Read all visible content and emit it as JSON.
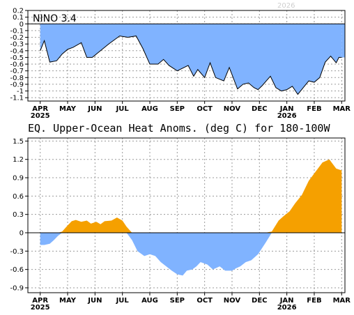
{
  "colors": {
    "positive": "#f5a000",
    "negative": "#80b3ff",
    "line": "#000000",
    "grid": "#9a9a9a"
  },
  "chart_data": [
    {
      "type": "area",
      "label": "NINO 3.4",
      "months": [
        "APR",
        "MAY",
        "JUN",
        "JUL",
        "AUG",
        "SEP",
        "OCT",
        "NOV",
        "DEC",
        "JAN",
        "FEB",
        "MAR"
      ],
      "year_labels": {
        "APR": "2025",
        "JAN": "2026"
      },
      "ylim": [
        -1.15,
        0.2
      ],
      "yticks": [
        0.2,
        0.1,
        0,
        -0.1,
        -0.2,
        -0.3,
        -0.4,
        -0.5,
        -0.6,
        -0.7,
        -0.8,
        -0.9,
        -1,
        -1.1
      ],
      "ytick_labels": [
        "0.2",
        "0.1",
        "0",
        "-0.1",
        "-0.2",
        "-0.3",
        "-0.4",
        "-0.5",
        "-0.6",
        "-0.7",
        "-0.8",
        "-0.9",
        "-1",
        "-1.1"
      ],
      "x": [
        0,
        0.15,
        0.35,
        0.6,
        0.8,
        1.0,
        1.2,
        1.5,
        1.7,
        1.9,
        2.2,
        2.5,
        2.8,
        2.9,
        3.2,
        3.5,
        3.75,
        4.0,
        4.3,
        4.5,
        4.7,
        5.0,
        5.25,
        5.4,
        5.6,
        5.75,
        6.0,
        6.2,
        6.4,
        6.7,
        6.9,
        7.2,
        7.4,
        7.6,
        7.8,
        7.95,
        8.1,
        8.4,
        8.6,
        8.8,
        9.0,
        9.2,
        9.4,
        9.6,
        9.8,
        10.0,
        10.2,
        10.4,
        10.6,
        10.8,
        10.9,
        11.0
      ],
      "y": [
        -0.4,
        -0.25,
        -0.57,
        -0.55,
        -0.45,
        -0.38,
        -0.35,
        -0.28,
        -0.5,
        -0.5,
        -0.4,
        -0.3,
        -0.21,
        -0.18,
        -0.2,
        -0.18,
        -0.37,
        -0.6,
        -0.6,
        -0.53,
        -0.62,
        -0.7,
        -0.65,
        -0.62,
        -0.78,
        -0.68,
        -0.8,
        -0.58,
        -0.8,
        -0.85,
        -0.65,
        -0.97,
        -0.9,
        -0.88,
        -0.95,
        -0.98,
        -0.92,
        -0.78,
        -0.95,
        -1.0,
        -0.98,
        -0.93,
        -1.05,
        -0.95,
        -0.85,
        -0.87,
        -0.8,
        -0.57,
        -0.48,
        -0.58,
        -0.5,
        -0.5
      ]
    },
    {
      "type": "area",
      "title": "EQ. Upper-Ocean Heat Anoms. (deg C) for 180-100W",
      "months": [
        "APR",
        "MAY",
        "JUN",
        "JUL",
        "AUG",
        "SEP",
        "OCT",
        "NOV",
        "DEC",
        "JAN",
        "FEB",
        "MAR"
      ],
      "year_labels": {
        "APR": "2025",
        "JAN": "2026"
      },
      "ylim": [
        -0.98,
        1.55
      ],
      "yticks": [
        1.5,
        1.2,
        0.9,
        0.6,
        0.3,
        0,
        -0.3,
        -0.6,
        -0.9
      ],
      "ytick_labels": [
        "1.5",
        "1.2",
        "0.9",
        "0.6",
        "0.3",
        "0",
        "-0.3",
        "-0.6",
        "-0.9"
      ],
      "x": [
        0,
        0.15,
        0.35,
        0.5,
        0.65,
        0.8,
        1.0,
        1.15,
        1.3,
        1.5,
        1.7,
        1.85,
        2.05,
        2.2,
        2.35,
        2.6,
        2.8,
        3.0,
        3.15,
        3.35,
        3.55,
        3.8,
        4.0,
        4.2,
        4.4,
        4.6,
        4.8,
        5.0,
        5.2,
        5.35,
        5.55,
        5.7,
        5.85,
        6.1,
        6.3,
        6.55,
        6.75,
        7.0,
        7.15,
        7.3,
        7.5,
        7.7,
        7.95,
        8.2,
        8.45,
        8.7,
        8.9,
        9.1,
        9.3,
        9.55,
        9.8,
        10.05,
        10.3,
        10.55,
        10.8,
        11.0
      ],
      "y": [
        -0.2,
        -0.2,
        -0.18,
        -0.12,
        -0.05,
        0.02,
        0.12,
        0.19,
        0.21,
        0.18,
        0.2,
        0.15,
        0.18,
        0.14,
        0.19,
        0.2,
        0.25,
        0.2,
        0.1,
        -0.12,
        -0.3,
        -0.38,
        -0.35,
        -0.38,
        -0.48,
        -0.55,
        -0.62,
        -0.68,
        -0.7,
        -0.62,
        -0.6,
        -0.55,
        -0.48,
        -0.52,
        -0.6,
        -0.55,
        -0.62,
        -0.62,
        -0.58,
        -0.55,
        -0.48,
        -0.45,
        -0.35,
        -0.18,
        0.02,
        0.2,
        0.28,
        0.35,
        0.48,
        0.62,
        0.85,
        1.0,
        1.15,
        1.2,
        1.05,
        1.02
      ]
    }
  ]
}
